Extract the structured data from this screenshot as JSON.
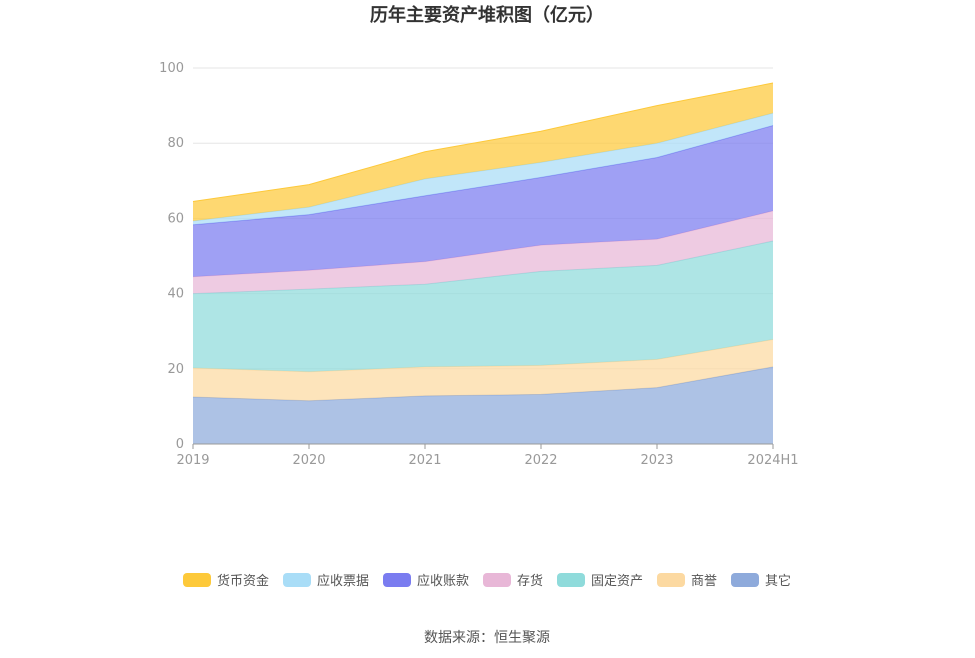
{
  "chart_data": {
    "type": "area",
    "stacked": true,
    "title": "历年主要资产堆积图（亿元）",
    "categories": [
      "2019",
      "2020",
      "2021",
      "2022",
      "2023",
      "2024H1"
    ],
    "ylim": [
      0,
      100
    ],
    "yticks": [
      0,
      20,
      40,
      60,
      80,
      100
    ],
    "grid": true,
    "legend_position": "bottom",
    "series": [
      {
        "name": "其它",
        "color": "#8eaadb",
        "values": [
          12.5,
          11.5,
          12.8,
          13.2,
          15.0,
          20.5
        ]
      },
      {
        "name": "商誉",
        "color": "#fcd9a1",
        "values": [
          7.7,
          7.7,
          7.7,
          7.7,
          7.5,
          7.3
        ]
      },
      {
        "name": "固定资产",
        "color": "#8fdbdb",
        "values": [
          19.8,
          22.0,
          22.0,
          25.0,
          25.0,
          26.2
        ]
      },
      {
        "name": "存货",
        "color": "#e8b7d7",
        "values": [
          4.5,
          5.0,
          6.0,
          7.0,
          7.0,
          8.0
        ]
      },
      {
        "name": "应收账款",
        "color": "#7a7cf0",
        "values": [
          13.8,
          14.8,
          17.5,
          18.0,
          21.7,
          22.7
        ]
      },
      {
        "name": "应收票据",
        "color": "#a9ddf7",
        "values": [
          1.0,
          2.0,
          4.5,
          4.0,
          3.8,
          3.3
        ]
      },
      {
        "name": "货币资金",
        "color": "#fdc93a",
        "values": [
          5.2,
          6.0,
          7.2,
          8.3,
          10.0,
          8.0
        ]
      }
    ],
    "legend_order": [
      "货币资金",
      "应收票据",
      "应收账款",
      "存货",
      "固定资产",
      "商誉",
      "其它"
    ],
    "source": "数据来源：恒生聚源"
  }
}
